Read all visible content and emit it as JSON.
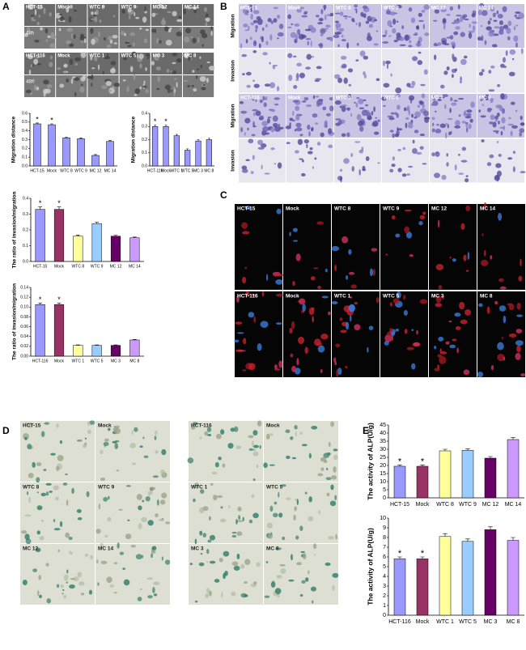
{
  "panel_labels": [
    "A",
    "B",
    "C",
    "D",
    "E"
  ],
  "panel_a": {
    "rows": [
      {
        "labels": [
          "HCT-15",
          "Mock",
          "WTC 8",
          "WTC 9",
          "MC 12",
          "MC 14"
        ],
        "time": "48h"
      },
      {
        "labels": [
          "HCT-116",
          "Mock",
          "WTC 1",
          "WTC 5",
          "MC 3",
          "MC 8"
        ],
        "time": "48h"
      }
    ]
  },
  "panel_b": {
    "groups": [
      {
        "labels": [
          "HCT-15",
          "Mock",
          "WTC 8",
          "WTC 9",
          "MC 12",
          "MC 14"
        ],
        "rows": [
          "Migration",
          "Invasion"
        ]
      },
      {
        "labels": [
          "HCT-116",
          "Mock",
          "WTC 1",
          "WTC 5",
          "MC 3",
          "MC 8"
        ],
        "rows": [
          "Migration",
          "Invasion"
        ]
      }
    ]
  },
  "panel_c": {
    "rows": [
      [
        "HCT-15",
        "Mock",
        "WTC 8",
        "WTC 9",
        "MC 12",
        "MC 14"
      ],
      [
        "HCT-116",
        "Mock",
        "WTC  1",
        "WTC 5",
        "MC 3",
        "MC 8"
      ]
    ]
  },
  "panel_d": {
    "grids": [
      [
        "HCT-15",
        "Mock",
        "WTC 8",
        "WTC 9",
        "MC 12",
        "MC 14"
      ],
      [
        "HCT-116",
        "Mock",
        "WTC 1",
        "WTC 5",
        "MC 3",
        "MC 8"
      ]
    ]
  },
  "chart_data": [
    {
      "type": "bar",
      "y_label": "Migration distance",
      "categories": [
        "HCT-15",
        "Mock",
        "WTC 8",
        "WTC 9",
        "MC 12",
        "MC 14"
      ],
      "values": [
        0.48,
        0.47,
        0.32,
        0.31,
        0.12,
        0.28
      ],
      "errors": [
        0.01,
        0.01,
        0.01,
        0.01,
        0.01,
        0.01
      ],
      "significance": [
        "*",
        "*",
        null,
        null,
        null,
        null
      ],
      "color": "#9999ff",
      "ylim": [
        0,
        0.6
      ],
      "yticks": [
        {
          "value": 0,
          "label": "0.0"
        },
        0.1,
        0.2,
        0.3,
        0.4,
        0.5,
        0.6
      ]
    },
    {
      "type": "bar",
      "y_label": "Migration distance",
      "categories": [
        "HCT-116",
        "Mock",
        "WTC 1",
        "WTC 5",
        "MC 3",
        "MC 8"
      ],
      "values": [
        0.3,
        0.3,
        0.23,
        0.12,
        0.19,
        0.2
      ],
      "errors": [
        0.01,
        0.01,
        0.01,
        0.01,
        0.01,
        0.01
      ],
      "significance": [
        "*",
        "*",
        null,
        null,
        null,
        null
      ],
      "color": "#9999ff",
      "ylim": [
        0,
        0.4
      ],
      "yticks": [
        {
          "value": 0,
          "label": "0.0"
        },
        0.1,
        0.2,
        0.3,
        0.4
      ]
    },
    {
      "type": "bar",
      "y_label": "The ratio of invasion/migration",
      "categories": [
        "HCT-15",
        "Mock",
        "WTC 8",
        "WTC 9",
        "MC 12",
        "MC 14"
      ],
      "values": [
        0.33,
        0.33,
        0.16,
        0.24,
        0.16,
        0.15
      ],
      "errors": [
        0.015,
        0.015,
        0.007,
        0.008,
        0.006,
        0.005
      ],
      "significance": [
        "*",
        "*",
        null,
        null,
        null,
        null
      ],
      "colors": [
        "#9999ff",
        "#993366",
        "#ffff99",
        "#99ccff",
        "#660066",
        "#cc99ff"
      ],
      "ylim": [
        0,
        0.4
      ],
      "yticks": [
        {
          "value": 0,
          "label": "0.0"
        },
        0.1,
        0.2,
        0.3,
        0.4
      ]
    },
    {
      "type": "bar",
      "y_label": "The ratio of invasion/migration",
      "categories": [
        "HCT-116",
        "Mock",
        "WTC 1",
        "WTC 5",
        "MC 3",
        "MC 8"
      ],
      "values": [
        0.105,
        0.105,
        0.022,
        0.022,
        0.022,
        0.033
      ],
      "errors": [
        0.003,
        0.003,
        0.001,
        0.001,
        0.001,
        0.001
      ],
      "significance": [
        "*",
        "*",
        null,
        null,
        null,
        null
      ],
      "colors": [
        "#9999ff",
        "#993366",
        "#ffff99",
        "#99ccff",
        "#660066",
        "#cc99ff"
      ],
      "ylim": [
        0,
        0.14
      ],
      "yticks": [
        {
          "value": 0,
          "label": "0.00"
        },
        0.02,
        0.04,
        0.06,
        0.08,
        {
          "value": 0.1,
          "label": "0.10"
        },
        0.12,
        0.14
      ]
    },
    {
      "type": "bar",
      "y_label": "The activity of ALP(U/g)",
      "categories": [
        "HCT-15",
        "Mock",
        "WTC 8",
        "WTC 9",
        "MC 12",
        "MC 14"
      ],
      "values": [
        19.5,
        19.5,
        29,
        29.3,
        24.5,
        36
      ],
      "errors": [
        0.8,
        0.8,
        1,
        1,
        1,
        1.2
      ],
      "significance": [
        "*",
        "*",
        null,
        null,
        null,
        null
      ],
      "colors": [
        "#9999ff",
        "#993366",
        "#ffff99",
        "#99ccff",
        "#660066",
        "#cc99ff"
      ],
      "ylim": [
        0,
        45
      ],
      "yticks": [
        0,
        5,
        10,
        15,
        20,
        25,
        30,
        35,
        40,
        45
      ]
    },
    {
      "type": "bar",
      "y_label": "The activity of ALP(U/g)",
      "categories": [
        "HCT-116",
        "Mock",
        "WTC 1",
        "WTC 5",
        "MC 3",
        "MC 8"
      ],
      "values": [
        5.8,
        5.8,
        8.1,
        7.6,
        8.8,
        7.7
      ],
      "errors": [
        0.2,
        0.2,
        0.3,
        0.25,
        0.3,
        0.3
      ],
      "significance": [
        "*",
        "*",
        null,
        null,
        null,
        null
      ],
      "colors": [
        "#9999ff",
        "#993366",
        "#ffff99",
        "#99ccff",
        "#660066",
        "#cc99ff"
      ],
      "ylim": [
        0,
        10
      ],
      "yticks": [
        0,
        1,
        2,
        3,
        4,
        5,
        6,
        7,
        8,
        9,
        10
      ]
    }
  ]
}
